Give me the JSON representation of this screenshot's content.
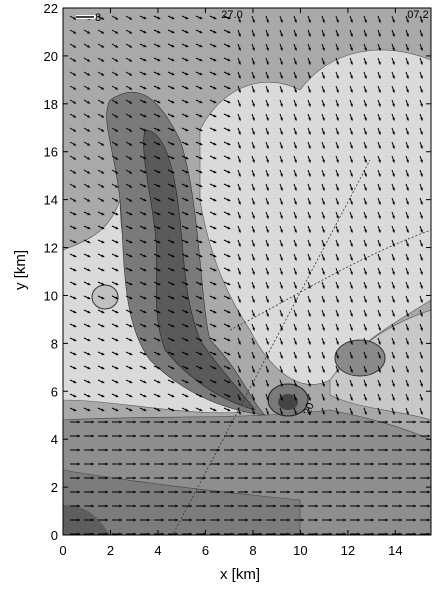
{
  "chart_data": {
    "type": "contour",
    "x_label": "x  [km]",
    "y_label": "y  [km]",
    "xlim": [
      0,
      15.5
    ],
    "ylim": [
      0,
      22
    ],
    "xticks": [
      0,
      2,
      4,
      6,
      8,
      10,
      12,
      14
    ],
    "yticks": [
      0,
      2,
      4,
      6,
      8,
      10,
      12,
      14,
      16,
      18,
      20,
      22
    ],
    "annotations": [
      "8",
      "27.0",
      "07.2",
      "20"
    ]
  }
}
